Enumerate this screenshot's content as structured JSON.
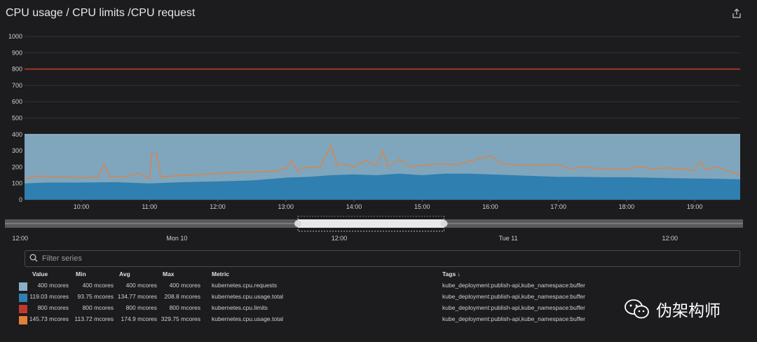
{
  "header": {
    "title": "CPU usage / CPU limits /CPU request",
    "export_icon": "share-export-icon"
  },
  "chart_data": {
    "type": "area",
    "title": "CPU usage / CPU limits /CPU request",
    "ylim": [
      0,
      1000
    ],
    "yticks": [
      "0",
      "100",
      "200",
      "300",
      "400",
      "500",
      "600",
      "700",
      "800",
      "900",
      "1000"
    ],
    "xlim": [
      "09:10",
      "19:40"
    ],
    "xticks": [
      "10:00",
      "11:00",
      "12:00",
      "13:00",
      "14:00",
      "15:00",
      "16:00",
      "17:00",
      "18:00",
      "19:00"
    ],
    "grid": true,
    "series": [
      {
        "name": "kubernetes.cpu.requests",
        "color": "#7fa6bd",
        "style": "area",
        "constant": 400
      },
      {
        "name": "kubernetes.cpu.usage.total",
        "color": "#2f7fb0",
        "style": "area",
        "x": [
          "09:10",
          "09:30",
          "10:00",
          "10:30",
          "11:00",
          "11:30",
          "12:00",
          "12:30",
          "13:00",
          "13:20",
          "13:40",
          "14:00",
          "14:20",
          "14:40",
          "15:00",
          "15:20",
          "15:40",
          "16:00",
          "16:20",
          "16:40",
          "17:00",
          "17:20",
          "17:40",
          "18:00",
          "18:20",
          "18:40",
          "19:00",
          "19:20",
          "19:40"
        ],
        "values": [
          100,
          105,
          105,
          108,
          100,
          108,
          112,
          118,
          135,
          140,
          150,
          155,
          150,
          160,
          150,
          160,
          160,
          155,
          150,
          145,
          140,
          140,
          138,
          138,
          135,
          132,
          130,
          128,
          125
        ]
      },
      {
        "name": "kubernetes.cpu.limits",
        "color": "#c0392b",
        "style": "line",
        "constant": 800
      },
      {
        "name": "kubernetes.cpu.usage.total",
        "color": "#e5803b",
        "style": "line",
        "x": [
          "09:10",
          "09:20",
          "09:30",
          "09:50",
          "10:00",
          "10:15",
          "10:20",
          "10:25",
          "10:40",
          "10:50",
          "11:00",
          "11:02",
          "11:06",
          "11:10",
          "11:30",
          "11:45",
          "12:00",
          "12:10",
          "12:30",
          "12:50",
          "13:00",
          "13:05",
          "13:10",
          "13:15",
          "13:30",
          "13:40",
          "13:45",
          "13:50",
          "14:00",
          "14:10",
          "14:20",
          "14:25",
          "14:30",
          "14:40",
          "14:50",
          "15:00",
          "15:15",
          "15:30",
          "15:45",
          "16:00",
          "16:05",
          "16:10",
          "16:20",
          "16:40",
          "17:00",
          "17:10",
          "17:20",
          "17:40",
          "18:00",
          "18:10",
          "18:20",
          "18:40",
          "19:00",
          "19:05",
          "19:10",
          "19:20",
          "19:40"
        ],
        "values": [
          125,
          145,
          140,
          138,
          135,
          140,
          220,
          140,
          140,
          165,
          130,
          285,
          285,
          140,
          150,
          155,
          160,
          165,
          170,
          175,
          190,
          240,
          175,
          195,
          200,
          330,
          210,
          220,
          200,
          240,
          210,
          300,
          200,
          250,
          200,
          210,
          220,
          215,
          240,
          270,
          250,
          220,
          215,
          210,
          215,
          190,
          200,
          190,
          185,
          205,
          190,
          195,
          180,
          235,
          185,
          200,
          150
        ]
      }
    ]
  },
  "timeline": {
    "labels": [
      "12:00",
      "Mon 10",
      "12:00",
      "Tue 11",
      "12:00"
    ],
    "selection": {
      "start_fraction": 0.397,
      "end_fraction": 0.595
    }
  },
  "filter": {
    "placeholder": "Filter series",
    "icon": "search-icon"
  },
  "legend": {
    "headers": {
      "value": "Value",
      "min": "Min",
      "avg": "Avg",
      "max": "Max",
      "metric": "Metric",
      "tags": "Tags ↓"
    },
    "rows": [
      {
        "color": "#8ab0c8",
        "value": "400 mcores",
        "min": "400 mcores",
        "avg": "400 mcores",
        "max": "400 mcores",
        "metric": "kubernetes.cpu.requests",
        "tags": "kube_deployment:publish-api,kube_namespace:buffer"
      },
      {
        "color": "#2f7fb0",
        "value": "119.03 mcores",
        "min": "93.75 mcores",
        "avg": "134.77 mcores",
        "max": "208.8 mcores",
        "metric": "kubernetes.cpu.usage.total",
        "tags": "kube_deployment:publish-api,kube_namespace:buffer"
      },
      {
        "color": "#c0392b",
        "value": "800 mcores",
        "min": "800 mcores",
        "avg": "800 mcores",
        "max": "800 mcores",
        "metric": "kubernetes.cpu.limits",
        "tags": "kube_deployment:publish-api,kube_namespace:buffer"
      },
      {
        "color": "#e5803b",
        "value": "145.73 mcores",
        "min": "113.72 mcores",
        "avg": "174.9 mcores",
        "max": "329.75 mcores",
        "metric": "kubernetes.cpu.usage.total",
        "tags": "kube_deployment:publish-api,kube_namespace:buffer"
      }
    ]
  },
  "watermark": {
    "text": "伪架构师",
    "icon": "wechat-icon"
  }
}
